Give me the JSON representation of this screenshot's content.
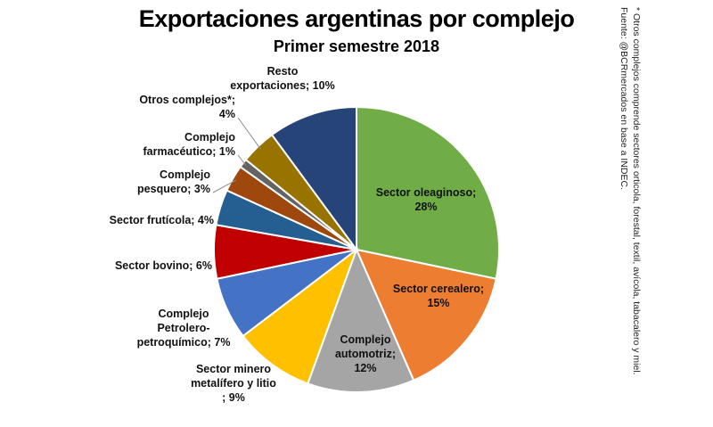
{
  "chart_data": {
    "type": "pie",
    "title": "Exportaciones argentinas por complejo",
    "subtitle": "Primer semestre 2018",
    "slices": [
      {
        "label_lines": [
          "Sector oleaginoso;",
          "28%"
        ],
        "value": 28,
        "color": "#70ad47"
      },
      {
        "label_lines": [
          "Sector cerealero;",
          "15%"
        ],
        "value": 15,
        "color": "#ed7d31"
      },
      {
        "label_lines": [
          "Complejo",
          "automotriz;",
          "12%"
        ],
        "value": 12,
        "color": "#a5a5a5"
      },
      {
        "label_lines": [
          "Sector minero",
          "metalífero y litio",
          "; 9%"
        ],
        "value": 9,
        "color": "#ffc000"
      },
      {
        "label_lines": [
          "Complejo",
          "Petrolero-",
          "petroquímico; 7%"
        ],
        "value": 7,
        "color": "#4472c4"
      },
      {
        "label_lines": [
          "Sector bovino; 6%"
        ],
        "value": 6,
        "color": "#c00000"
      },
      {
        "label_lines": [
          "Sector frutícola; 4%"
        ],
        "value": 4,
        "color": "#255e91"
      },
      {
        "label_lines": [
          "Complejo",
          "pesquero; 3%"
        ],
        "value": 3,
        "color": "#9e480e"
      },
      {
        "label_lines": [
          "Complejo",
          "farmacéutico; 1%"
        ],
        "value": 1,
        "color": "#636363"
      },
      {
        "label_lines": [
          "Otros complejos*;",
          "4%"
        ],
        "value": 4,
        "color": "#997300"
      },
      {
        "label_lines": [
          "Resto",
          "exportaciones; 10%"
        ],
        "value": 10,
        "color": "#264478"
      }
    ]
  },
  "footnote": "* Otros complejos comprende sectores orticola, forestal, textil, avícola, tabacalero y miel. Fuente: @BCRmercados  en base a INDEC."
}
